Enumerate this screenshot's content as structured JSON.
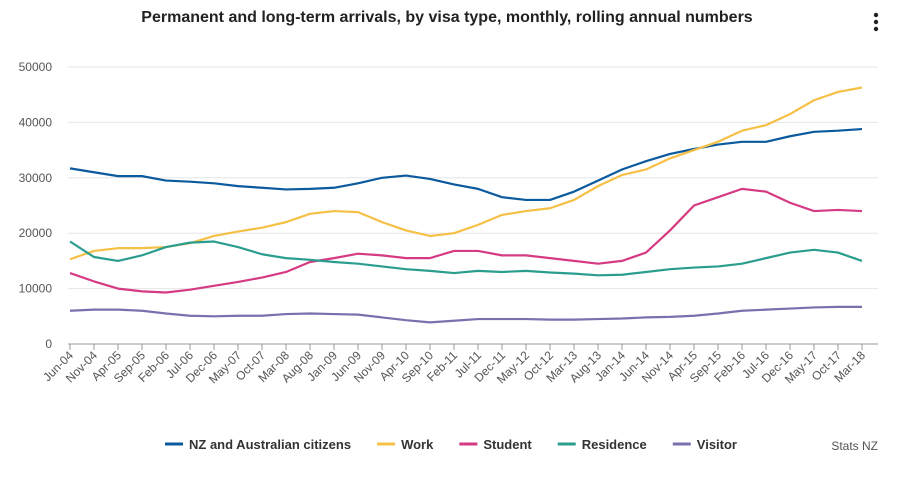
{
  "chart_data": {
    "type": "line",
    "title": "Permanent and long-term arrivals, by visa type, monthly, rolling annual numbers",
    "source": "Stats NZ",
    "categories": [
      "Jun-04",
      "Nov-04",
      "Apr-05",
      "Sep-05",
      "Feb-06",
      "Jul-06",
      "Dec-06",
      "May-07",
      "Oct-07",
      "Mar-08",
      "Aug-08",
      "Jan-09",
      "Jun-09",
      "Nov-09",
      "Apr-10",
      "Sep-10",
      "Feb-11",
      "Jul-11",
      "Dec-11",
      "May-12",
      "Oct-12",
      "Mar-13",
      "Aug-13",
      "Jan-14",
      "Jun-14",
      "Nov-14",
      "Apr-15",
      "Sep-15",
      "Feb-16",
      "Jul-16",
      "Dec-16",
      "May-17",
      "Oct-17",
      "Mar-18"
    ],
    "series": [
      {
        "name": "NZ and Australian citizens",
        "color": "#0b5a9e",
        "values": [
          31700,
          31000,
          30300,
          30300,
          29500,
          29300,
          29000,
          28500,
          28200,
          27900,
          28000,
          28200,
          29000,
          30000,
          30400,
          29800,
          28800,
          28000,
          26500,
          26000,
          26000,
          27500,
          29500,
          31500,
          33000,
          34300,
          35200,
          36000,
          36500,
          36500,
          37500,
          38300,
          38500,
          38800
        ]
      },
      {
        "name": "Work",
        "color": "#f6c046",
        "values": [
          15300,
          16800,
          17300,
          17300,
          17500,
          18200,
          19500,
          20300,
          21000,
          22000,
          23500,
          24000,
          23800,
          22000,
          20500,
          19500,
          20000,
          21500,
          23300,
          24000,
          24500,
          26000,
          28500,
          30500,
          31500,
          33500,
          35000,
          36500,
          38500,
          39500,
          41500,
          44000,
          45500,
          46300
        ]
      },
      {
        "name": "Student",
        "color": "#d53a82",
        "values": [
          12800,
          11300,
          10000,
          9500,
          9300,
          9800,
          10500,
          11200,
          12000,
          13000,
          14800,
          15500,
          16300,
          16000,
          15500,
          15500,
          16800,
          16800,
          16000,
          16000,
          15500,
          15000,
          14500,
          15000,
          16500,
          20500,
          25000,
          26500,
          28000,
          27500,
          25500,
          24000,
          24200,
          24000
        ]
      },
      {
        "name": "Residence",
        "color": "#2a9d8f",
        "values": [
          18500,
          15700,
          15000,
          16000,
          17500,
          18300,
          18500,
          17500,
          16200,
          15500,
          15200,
          14800,
          14500,
          14000,
          13500,
          13200,
          12800,
          13200,
          13000,
          13200,
          12900,
          12700,
          12400,
          12500,
          13000,
          13500,
          13800,
          14000,
          14500,
          15500,
          16500,
          17000,
          16500,
          15000
        ]
      },
      {
        "name": "Visitor",
        "color": "#7b6fae",
        "values": [
          6000,
          6200,
          6200,
          6000,
          5500,
          5100,
          5000,
          5100,
          5100,
          5400,
          5500,
          5400,
          5300,
          4800,
          4300,
          3900,
          4200,
          4500,
          4500,
          4500,
          4400,
          4400,
          4500,
          4600,
          4800,
          4900,
          5100,
          5500,
          6000,
          6200,
          6400,
          6600,
          6700,
          6700
        ]
      }
    ],
    "ylim": [
      0,
      50000
    ],
    "yticks": [
      0,
      10000,
      20000,
      30000,
      40000,
      50000
    ],
    "grid": true
  }
}
